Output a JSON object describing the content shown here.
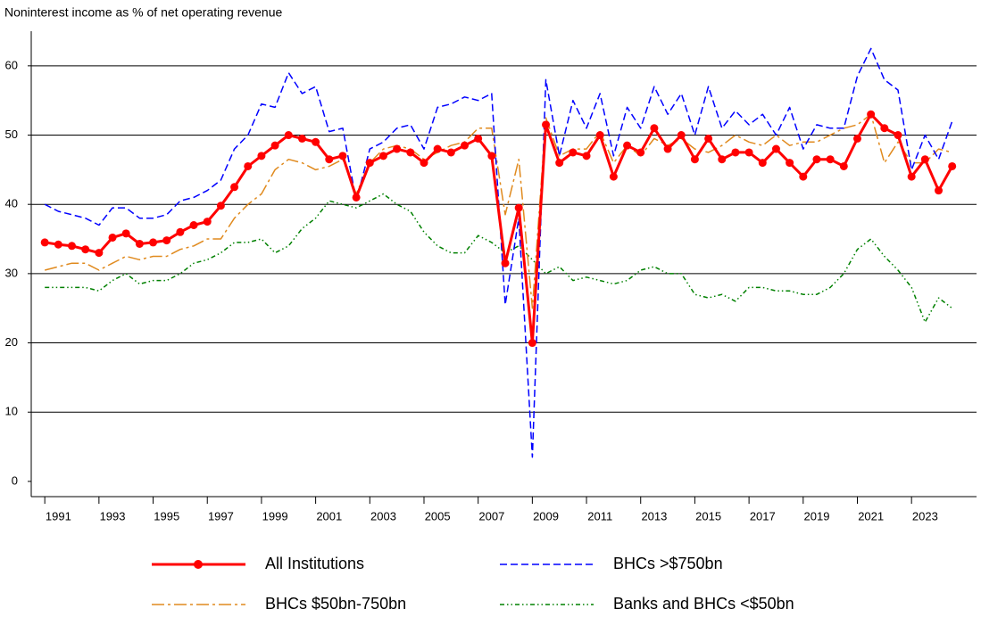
{
  "chart_data": {
    "type": "line",
    "title": "Noninterest income as % of net operating revenue",
    "x": [
      1991.0,
      1991.5,
      1992.0,
      1992.5,
      1993.0,
      1993.5,
      1994.0,
      1994.5,
      1995.0,
      1995.5,
      1996.0,
      1996.5,
      1997.0,
      1997.5,
      1998.0,
      1998.5,
      1999.0,
      1999.5,
      2000.0,
      2000.5,
      2001.0,
      2001.5,
      2002.0,
      2002.5,
      2003.0,
      2003.5,
      2004.0,
      2004.5,
      2005.0,
      2005.5,
      2006.0,
      2006.5,
      2007.0,
      2007.5,
      2008.0,
      2008.5,
      2009.0,
      2009.5,
      2010.0,
      2010.5,
      2011.0,
      2011.5,
      2012.0,
      2012.5,
      2013.0,
      2013.5,
      2014.0,
      2014.5,
      2015.0,
      2015.5,
      2016.0,
      2016.5,
      2017.0,
      2017.5,
      2018.0,
      2018.5,
      2019.0,
      2019.5,
      2020.0,
      2020.5,
      2021.0,
      2021.5,
      2022.0,
      2022.5,
      2023.0,
      2023.5,
      2024.0,
      2024.5
    ],
    "series": [
      {
        "name": "All Institutions",
        "color": "#ff0000",
        "line_style": "solid",
        "marker": true,
        "values": [
          34.5,
          34.2,
          34,
          33.5,
          33,
          35.2,
          35.8,
          34.3,
          34.5,
          34.8,
          36,
          37,
          37.5,
          39.8,
          42.5,
          45.5,
          47,
          48.5,
          50,
          49.5,
          49,
          46.5,
          47,
          41,
          46,
          47,
          48,
          47.5,
          46,
          48,
          47.5,
          48.5,
          49.5,
          47,
          31.5,
          39.5,
          20,
          51.5,
          46,
          47.5,
          47,
          50,
          44,
          48.5,
          47.5,
          51,
          48,
          50,
          46.5,
          49.5,
          46.5,
          47.5,
          47.5,
          46,
          48,
          46,
          44,
          46.5,
          46.5,
          45.5,
          49.5,
          53,
          51,
          50,
          44,
          46.5,
          42,
          45.5
        ]
      },
      {
        "name": "BHCs >$750bn",
        "color": "#0000ff",
        "line_style": "dashed",
        "marker": false,
        "values": [
          40,
          39,
          38.5,
          38,
          37,
          39.5,
          39.5,
          38,
          38,
          38.5,
          40.5,
          41,
          42,
          43.5,
          48,
          50,
          54.5,
          54,
          59,
          56,
          57,
          50.5,
          51,
          40.5,
          48,
          49,
          51,
          51.5,
          48,
          54,
          54.5,
          55.5,
          55,
          56,
          25.5,
          38,
          3.5,
          58,
          47,
          55,
          51,
          56,
          47,
          54,
          51,
          57,
          53,
          56,
          50,
          57,
          51,
          53.5,
          51.5,
          53,
          50,
          54,
          48,
          51.5,
          51,
          51,
          58.5,
          62.5,
          58,
          56.5,
          45,
          50,
          46.5,
          52
        ]
      },
      {
        "name": "BHCs $50bn-750bn",
        "color": "#e08a1e",
        "line_style": "dashdot",
        "marker": false,
        "values": [
          30.5,
          31,
          31.5,
          31.5,
          30.5,
          31.5,
          32.5,
          32,
          32.5,
          32.5,
          33.5,
          34,
          35,
          35,
          38,
          40,
          41.5,
          45,
          46.5,
          46,
          45,
          45.5,
          46.5,
          41.5,
          46,
          48,
          48.5,
          48,
          46.5,
          47.5,
          48.5,
          49,
          51,
          51,
          38.5,
          46.5,
          25,
          52.5,
          47,
          48,
          48,
          50.5,
          46,
          48.5,
          47,
          49.5,
          48.5,
          49.5,
          48,
          47.5,
          48.5,
          50,
          49,
          48.5,
          50,
          48.5,
          49,
          49,
          50,
          51,
          51.5,
          53,
          46,
          49,
          46,
          46,
          48,
          47.5
        ]
      },
      {
        "name": "Banks and BHCs <$50bn",
        "color": "#008000",
        "line_style": "dashdotdot",
        "marker": false,
        "values": [
          28,
          28,
          28,
          28,
          27.5,
          29,
          30,
          28.5,
          29,
          29,
          30,
          31.5,
          32,
          33,
          34.5,
          34.5,
          35,
          33,
          34,
          36.5,
          38,
          40.5,
          40,
          39.5,
          40.5,
          41.5,
          40,
          39,
          36,
          34,
          33,
          33,
          35.5,
          34.5,
          33,
          34,
          32,
          30,
          31,
          29,
          29.5,
          29,
          28.5,
          29,
          30.5,
          31,
          30,
          30,
          27,
          26.5,
          27,
          26,
          28,
          28,
          27.5,
          27.5,
          27,
          27,
          28,
          30,
          33.5,
          35,
          32.5,
          30.5,
          28,
          23,
          26.5,
          25
        ]
      }
    ],
    "xlim": [
      1990.5,
      2025.4
    ],
    "xticks": [
      1991,
      1993,
      1995,
      1997,
      1999,
      2001,
      2003,
      2005,
      2007,
      2009,
      2011,
      2013,
      2015,
      2017,
      2019,
      2021,
      2023
    ],
    "ylim": [
      -2.2,
      65
    ],
    "yticks": [
      0,
      10,
      20,
      30,
      40,
      50,
      60
    ],
    "grid": true,
    "legend": "bottom"
  }
}
